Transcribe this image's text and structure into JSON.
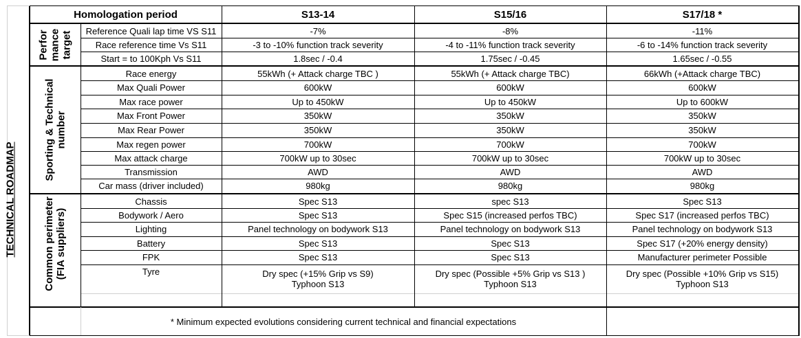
{
  "side_title": "TECHNICAL ROADMAP",
  "header": {
    "period_label": "Homologation period",
    "seasons": [
      "S13-14",
      "S15/16",
      "S17/18 *"
    ]
  },
  "sections": [
    {
      "name": "Perfor\nmance\ntarget",
      "rows": [
        {
          "label": "Reference Quali lap time VS S11",
          "values": [
            "-7%",
            "-8%",
            "-11%"
          ]
        },
        {
          "label": "Race reference time Vs S11",
          "values": [
            "-3 to -10% function track severity",
            "-4 to -11% function track severity",
            "-6 to -14% function track severity"
          ]
        },
        {
          "label": "Start = to 100Kph Vs S11",
          "values": [
            "1.8sec / -0.4",
            "1.75sec / -0.45",
            "1.65sec / -0.55"
          ]
        }
      ]
    },
    {
      "name": "Sporting & Technical\nnumber",
      "rows": [
        {
          "label": "Race energy",
          "values": [
            "55kWh (+ Attack charge TBC )",
            "55kWh (+ Attack charge TBC)",
            "66kWh (+Attack charge TBC)"
          ]
        },
        {
          "label": "Max Quali Power",
          "values": [
            "600kW",
            "600kW",
            "600kW"
          ]
        },
        {
          "label": "Max race power",
          "values": [
            "Up to 450kW",
            "Up to 450kW",
            "Up to 600kW"
          ]
        },
        {
          "label": "Max Front Power",
          "values": [
            "350kW",
            "350kW",
            "350kW"
          ]
        },
        {
          "label": "Max Rear Power",
          "values": [
            "350kW",
            "350kW",
            "350kW"
          ]
        },
        {
          "label": "Max regen power",
          "values": [
            "700kW",
            "700kW",
            "700kW"
          ]
        },
        {
          "label": "Max attack charge",
          "values": [
            "700kW up to 30sec",
            "700kW up to 30sec",
            "700kW up to 30sec"
          ]
        },
        {
          "label": "Transmission",
          "values": [
            "AWD",
            "AWD",
            "AWD"
          ]
        },
        {
          "label": "Car mass (driver included)",
          "values": [
            "980kg",
            "980kg",
            "980kg"
          ]
        }
      ]
    },
    {
      "name": "Common perimeter\n(FIA suppliers)",
      "rows": [
        {
          "label": "Chassis",
          "values": [
            "Spec S13",
            "spec S13",
            "Spec S13"
          ]
        },
        {
          "label": "Bodywork / Aero",
          "values": [
            "Spec S13",
            "Spec S15 (increased perfos TBC)",
            "Spec S17 (increased perfos TBC)"
          ]
        },
        {
          "label": "Lighting",
          "values": [
            "Panel technology on bodywork S13",
            "Panel technology on bodywork S13",
            "Panel technology on bodywork S13"
          ]
        },
        {
          "label": "Battery",
          "values": [
            "Spec S13",
            "Spec S13",
            "Spec S17 (+20% energy density)"
          ]
        },
        {
          "label": "FPK",
          "values": [
            "Spec S13",
            "Spec S13",
            "Manufacturer perimeter Possible"
          ]
        },
        {
          "label": "Tyre",
          "values": [
            "Dry spec (+15% Grip vs S9)\nTyphoon S13",
            "Dry spec (Possible +5% Grip vs S13 )\nTyphoon S13",
            "Dry spec (Possible +10% Grip vs S15)\nTyphoon S13"
          ]
        }
      ]
    }
  ],
  "footnote": "* Minimum expected evolutions considering current technical and financial expectations"
}
